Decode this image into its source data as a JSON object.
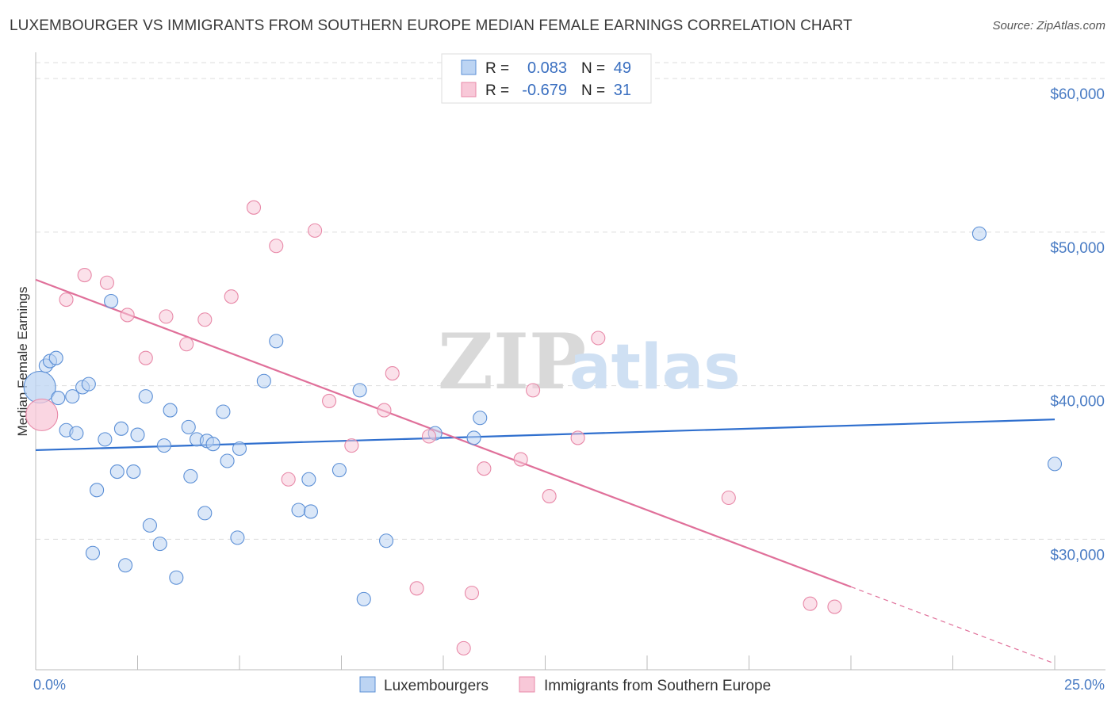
{
  "title": "LUXEMBOURGER VS IMMIGRANTS FROM SOUTHERN EUROPE MEDIAN FEMALE EARNINGS CORRELATION CHART",
  "source": "Source: ZipAtlas.com",
  "watermark": {
    "zip": "ZIP",
    "atlas": "atlas"
  },
  "colors": {
    "blue": "#5b8fd6",
    "blue_fill": "#bcd4f3",
    "blue_line": "#2f6fce",
    "pink": "#e889a8",
    "pink_fill": "#f8c8d8",
    "pink_line": "#e0709a",
    "grid": "#dddddd",
    "tick_text": "#4a7cc4"
  },
  "legend_top": {
    "rows": [
      {
        "r_label": "R =",
        "r_value": "0.083",
        "n_label": "N =",
        "n_value": "49",
        "series": "blue"
      },
      {
        "r_label": "R =",
        "r_value": "-0.679",
        "n_label": "N =",
        "n_value": "31",
        "series": "pink"
      }
    ]
  },
  "chart_data": {
    "type": "scatter",
    "title": "LUXEMBOURGER VS IMMIGRANTS FROM SOUTHERN EUROPE MEDIAN FEMALE EARNINGS CORRELATION CHART",
    "xlabel": "",
    "ylabel": "Median Female Earnings",
    "xlim": [
      0,
      25
    ],
    "ylim": [
      21500,
      61500
    ],
    "x_tick_labels": [
      {
        "value": 0,
        "label": "0.0%"
      },
      {
        "value": 25,
        "label": "25.0%"
      }
    ],
    "y_tick_labels": [
      {
        "value": 30000,
        "label": "$30,000"
      },
      {
        "value": 40000,
        "label": "$40,000"
      },
      {
        "value": 50000,
        "label": "$50,000"
      },
      {
        "value": 60000,
        "label": "$60,000"
      }
    ],
    "legend": [
      "Luxembourgers",
      "Immigrants from Southern Europe"
    ],
    "series": [
      {
        "name": "Luxembourgers",
        "color": "blue",
        "trend": {
          "x": [
            0,
            25
          ],
          "y": [
            35800,
            37800
          ],
          "solid_until": 25
        },
        "points": [
          {
            "x": 0.1,
            "y": 39900,
            "big": true
          },
          {
            "x": 0.25,
            "y": 41300
          },
          {
            "x": 0.35,
            "y": 41600
          },
          {
            "x": 0.5,
            "y": 41800
          },
          {
            "x": 0.55,
            "y": 39200
          },
          {
            "x": 0.75,
            "y": 37100
          },
          {
            "x": 0.9,
            "y": 39300
          },
          {
            "x": 1.0,
            "y": 36900
          },
          {
            "x": 1.15,
            "y": 39900
          },
          {
            "x": 1.3,
            "y": 40100
          },
          {
            "x": 1.5,
            "y": 33200
          },
          {
            "x": 1.4,
            "y": 29100
          },
          {
            "x": 1.7,
            "y": 36500
          },
          {
            "x": 1.85,
            "y": 45500
          },
          {
            "x": 2.0,
            "y": 34400
          },
          {
            "x": 2.1,
            "y": 37200
          },
          {
            "x": 2.2,
            "y": 28300
          },
          {
            "x": 2.4,
            "y": 34400
          },
          {
            "x": 2.5,
            "y": 36800
          },
          {
            "x": 2.7,
            "y": 39300
          },
          {
            "x": 2.8,
            "y": 30900
          },
          {
            "x": 3.05,
            "y": 29700
          },
          {
            "x": 3.15,
            "y": 36100
          },
          {
            "x": 3.3,
            "y": 38400
          },
          {
            "x": 3.45,
            "y": 27500
          },
          {
            "x": 3.75,
            "y": 37300
          },
          {
            "x": 3.8,
            "y": 34100
          },
          {
            "x": 3.95,
            "y": 36500
          },
          {
            "x": 4.15,
            "y": 31700
          },
          {
            "x": 4.2,
            "y": 36400
          },
          {
            "x": 4.35,
            "y": 36200
          },
          {
            "x": 4.6,
            "y": 38300
          },
          {
            "x": 4.7,
            "y": 35100
          },
          {
            "x": 4.95,
            "y": 30100
          },
          {
            "x": 5.0,
            "y": 35900
          },
          {
            "x": 5.6,
            "y": 40300
          },
          {
            "x": 5.9,
            "y": 42900
          },
          {
            "x": 6.45,
            "y": 31900
          },
          {
            "x": 6.75,
            "y": 31800
          },
          {
            "x": 6.7,
            "y": 33900
          },
          {
            "x": 7.45,
            "y": 34500
          },
          {
            "x": 7.95,
            "y": 39700
          },
          {
            "x": 8.05,
            "y": 26100
          },
          {
            "x": 8.6,
            "y": 29900
          },
          {
            "x": 9.8,
            "y": 36900
          },
          {
            "x": 10.75,
            "y": 36600
          },
          {
            "x": 10.9,
            "y": 37900
          },
          {
            "x": 23.15,
            "y": 49900
          },
          {
            "x": 25.0,
            "y": 34900
          }
        ]
      },
      {
        "name": "Immigrants from Southern Europe",
        "color": "pink",
        "trend": {
          "x": [
            0,
            25
          ],
          "y": [
            46900,
            21900
          ],
          "solid_until": 20.0
        },
        "points": [
          {
            "x": 0.15,
            "y": 38100,
            "big": true
          },
          {
            "x": 0.75,
            "y": 45600
          },
          {
            "x": 1.2,
            "y": 47200
          },
          {
            "x": 1.75,
            "y": 46700
          },
          {
            "x": 2.25,
            "y": 44600
          },
          {
            "x": 2.7,
            "y": 41800
          },
          {
            "x": 3.2,
            "y": 44500
          },
          {
            "x": 3.7,
            "y": 42700
          },
          {
            "x": 4.15,
            "y": 44300
          },
          {
            "x": 4.8,
            "y": 45800
          },
          {
            "x": 5.35,
            "y": 51600
          },
          {
            "x": 5.9,
            "y": 49100
          },
          {
            "x": 6.2,
            "y": 33900
          },
          {
            "x": 6.85,
            "y": 50100
          },
          {
            "x": 7.2,
            "y": 39000
          },
          {
            "x": 7.75,
            "y": 36100
          },
          {
            "x": 8.55,
            "y": 38400
          },
          {
            "x": 8.75,
            "y": 40800
          },
          {
            "x": 9.35,
            "y": 26800
          },
          {
            "x": 9.65,
            "y": 36700
          },
          {
            "x": 10.7,
            "y": 26500
          },
          {
            "x": 10.5,
            "y": 22900
          },
          {
            "x": 11.0,
            "y": 34600
          },
          {
            "x": 11.9,
            "y": 35200
          },
          {
            "x": 12.2,
            "y": 39700
          },
          {
            "x": 12.6,
            "y": 32800
          },
          {
            "x": 13.3,
            "y": 36600
          },
          {
            "x": 13.8,
            "y": 43100
          },
          {
            "x": 17.0,
            "y": 32700
          },
          {
            "x": 19.0,
            "y": 25800
          },
          {
            "x": 19.6,
            "y": 25600
          }
        ]
      }
    ]
  }
}
